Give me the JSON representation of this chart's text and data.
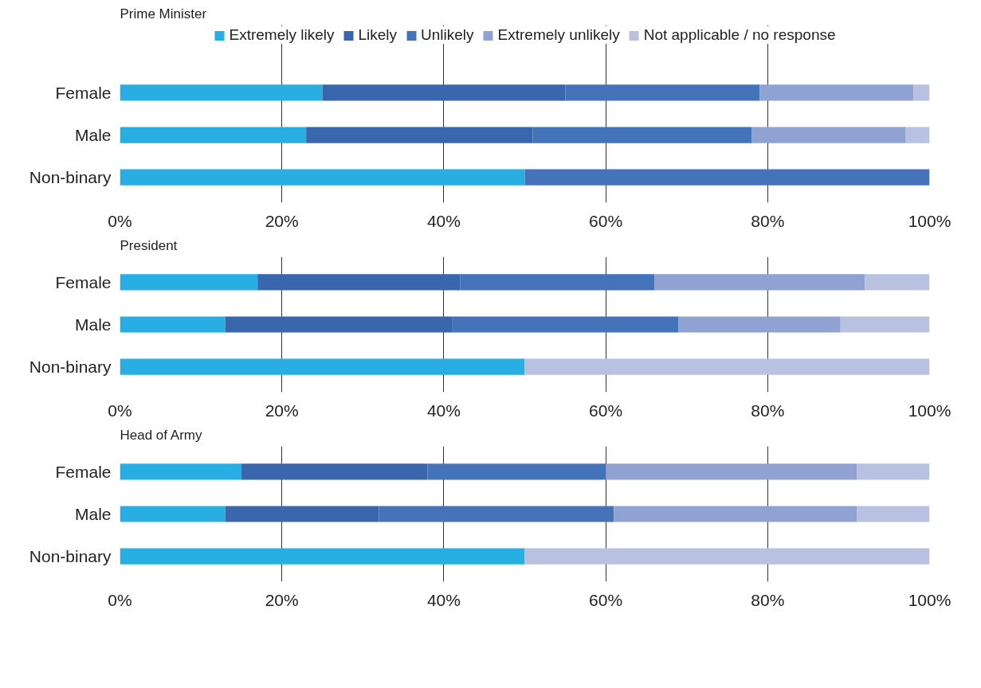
{
  "chart_data": [
    {
      "type": "bar",
      "title": "Prime Minister",
      "orientation": "horizontal",
      "stacked": true,
      "legend": "top",
      "grid": "x",
      "categories": [
        "Female",
        "Male",
        "Non-binary"
      ],
      "xlim": [
        0,
        100
      ],
      "xticks": [
        {
          "value": 0,
          "label": "0%"
        },
        {
          "value": 20,
          "label": "20%"
        },
        {
          "value": 40,
          "label": "40%"
        },
        {
          "value": 60,
          "label": "60%"
        },
        {
          "value": 80,
          "label": "80%"
        },
        {
          "value": 100,
          "label": "100%"
        }
      ],
      "series": [
        {
          "name": "Extremely likely",
          "color": "#29aee3",
          "values": [
            25,
            23,
            50
          ]
        },
        {
          "name": "Likely",
          "color": "#3966ad",
          "values": [
            30,
            28,
            0
          ]
        },
        {
          "name": "Unlikely",
          "color": "#4573b9",
          "values": [
            24,
            27,
            50
          ]
        },
        {
          "name": "Extremely unlikely",
          "color": "#8fa2d2",
          "values": [
            19,
            19,
            0
          ]
        },
        {
          "name": "Not applicable / no response",
          "color": "#b8c2e0",
          "values": [
            2,
            3,
            0
          ]
        }
      ]
    },
    {
      "type": "bar",
      "title": "President",
      "orientation": "horizontal",
      "stacked": true,
      "grid": "x",
      "categories": [
        "Female",
        "Male",
        "Non-binary"
      ],
      "xlim": [
        0,
        100
      ],
      "xticks": [
        {
          "value": 0,
          "label": "0%"
        },
        {
          "value": 20,
          "label": "20%"
        },
        {
          "value": 40,
          "label": "40%"
        },
        {
          "value": 60,
          "label": "60%"
        },
        {
          "value": 80,
          "label": "80%"
        },
        {
          "value": 100,
          "label": "100%"
        }
      ],
      "series": [
        {
          "color": "#29aee3",
          "values": [
            17,
            13,
            50
          ]
        },
        {
          "color": "#3966ad",
          "values": [
            25,
            28,
            0
          ]
        },
        {
          "color": "#4573b9",
          "values": [
            24,
            28,
            0
          ]
        },
        {
          "color": "#8fa2d2",
          "values": [
            26,
            20,
            0
          ]
        },
        {
          "color": "#b8c2e0",
          "values": [
            8,
            11,
            50
          ]
        }
      ]
    },
    {
      "type": "bar",
      "title": "Head of Army",
      "orientation": "horizontal",
      "stacked": true,
      "grid": "x",
      "categories": [
        "Female",
        "Male",
        "Non-binary"
      ],
      "xlim": [
        0,
        100
      ],
      "xticks": [
        {
          "value": 0,
          "label": "0%"
        },
        {
          "value": 20,
          "label": "20%"
        },
        {
          "value": 40,
          "label": "40%"
        },
        {
          "value": 60,
          "label": "60%"
        },
        {
          "value": 80,
          "label": "80%"
        },
        {
          "value": 100,
          "label": "100%"
        }
      ],
      "series": [
        {
          "color": "#29aee3",
          "values": [
            15,
            13,
            50
          ]
        },
        {
          "color": "#3966ad",
          "values": [
            23,
            19,
            0
          ]
        },
        {
          "color": "#4573b9",
          "values": [
            22,
            29,
            0
          ]
        },
        {
          "color": "#8fa2d2",
          "values": [
            31,
            30,
            0
          ]
        },
        {
          "color": "#b8c2e0",
          "values": [
            9,
            9,
            50
          ]
        }
      ]
    }
  ]
}
